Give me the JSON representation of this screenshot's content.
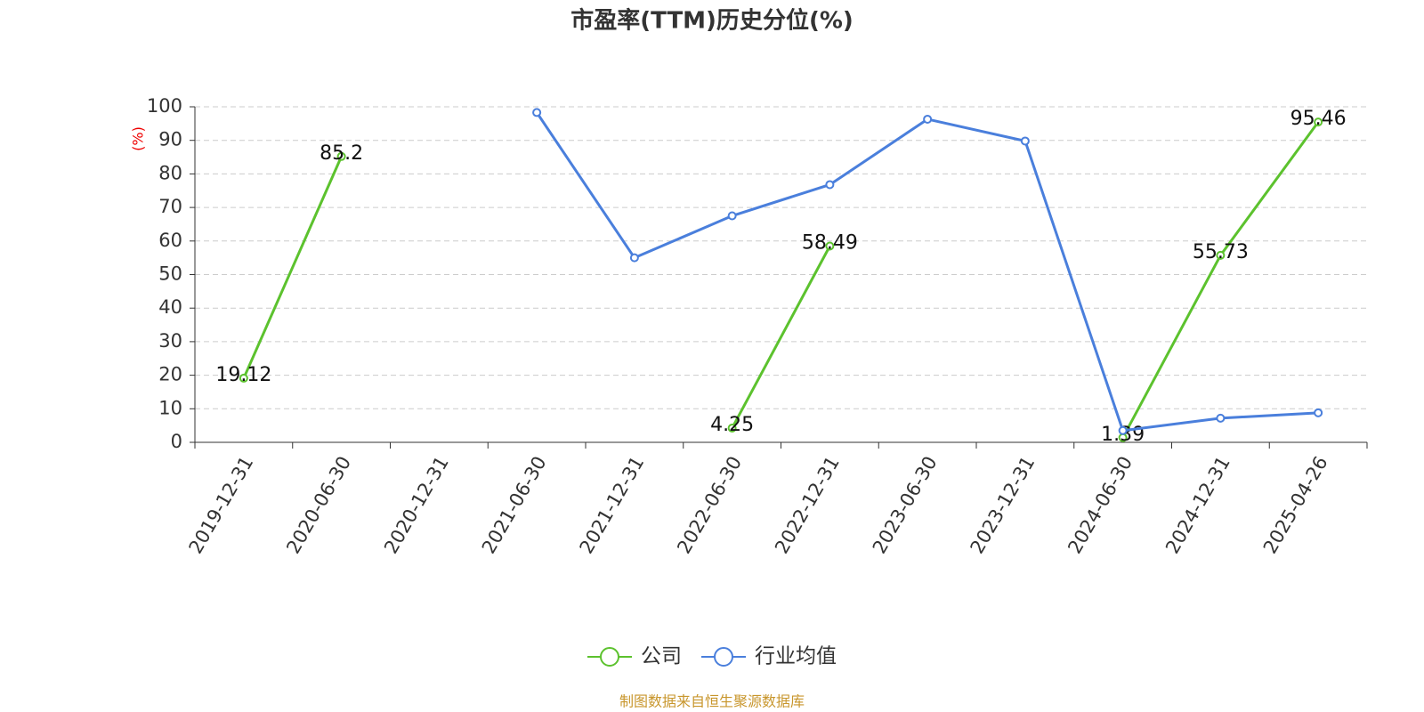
{
  "chart_data": {
    "type": "line",
    "title": "市盈率(TTM)历史分位(%)",
    "y_label": "(%)",
    "categories": [
      "2019-12-31",
      "2020-06-30",
      "2020-12-31",
      "2021-06-30",
      "2021-12-31",
      "2022-06-30",
      "2022-12-31",
      "2023-06-30",
      "2023-12-31",
      "2024-06-30",
      "2024-12-31",
      "2025-04-26"
    ],
    "series": [
      {
        "name": "公司",
        "color": "#5cc22e",
        "values": [
          19.12,
          85.2,
          null,
          null,
          null,
          4.25,
          58.49,
          null,
          null,
          1.39,
          55.73,
          95.46
        ],
        "data_labels": true
      },
      {
        "name": "行业均值",
        "color": "#4a7fdc",
        "values": [
          null,
          null,
          null,
          98.3,
          55.0,
          67.5,
          76.8,
          96.3,
          89.8,
          3.5,
          7.2,
          8.8
        ],
        "data_labels": false
      }
    ],
    "ylim": [
      0,
      100
    ],
    "yticks": [
      0,
      10,
      20,
      30,
      40,
      50,
      60,
      70,
      80,
      90,
      100
    ],
    "grid": true,
    "legend": "bottom",
    "source": "制图数据来自恒生聚源数据库"
  }
}
